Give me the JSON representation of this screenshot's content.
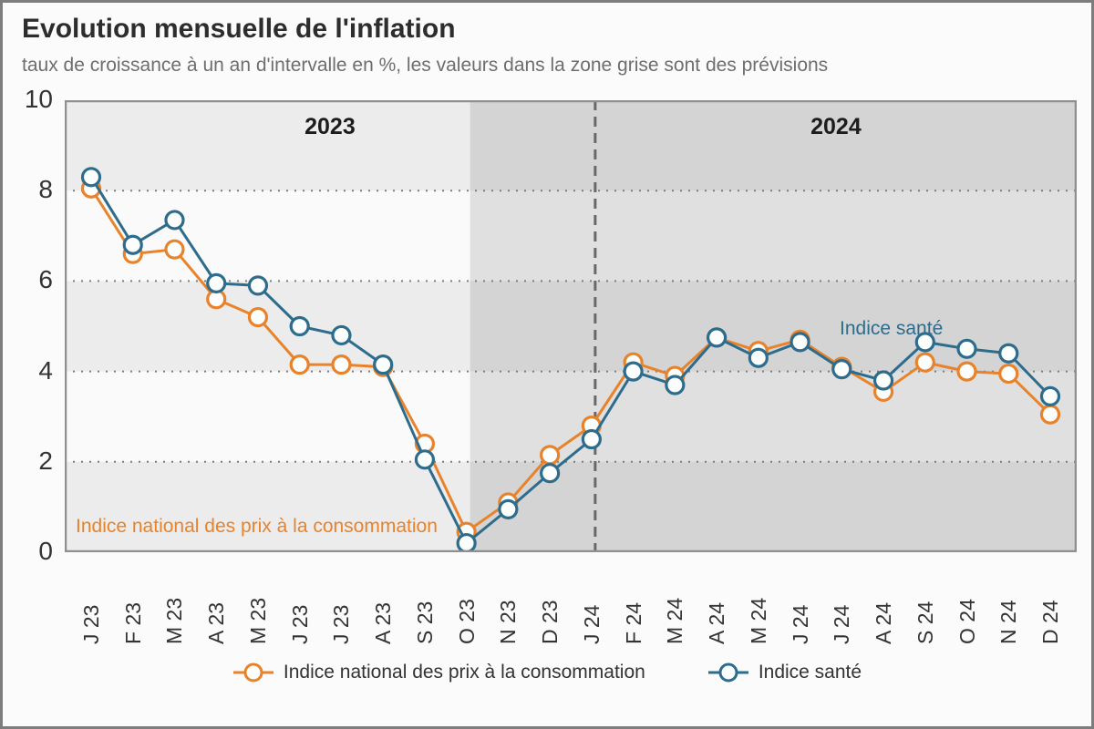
{
  "header": {
    "title": "Evolution mensuelle de l'inflation",
    "subtitle": "taux de croissance à un an d'intervalle en %, les valeurs dans la zone grise sont des prévisions"
  },
  "colors": {
    "cpi": "#e8832b",
    "health": "#2d6c8c",
    "band_dark": "#ececec",
    "band_light": "#fafafa",
    "forecast_overlay": "rgba(0,0,0,0.10)",
    "gridline": "#7d7d7d",
    "divider": "#686868",
    "plot_border": "#8f8f8f",
    "marker_fill": "#fcfefe"
  },
  "chart_data": {
    "type": "line",
    "x": [
      "J 23",
      "F 23",
      "M 23",
      "A 23",
      "M 23",
      "J 23",
      "J 23",
      "A 23",
      "S 23",
      "O 23",
      "N 23",
      "D 23",
      "J 24",
      "F 24",
      "M 24",
      "A 24",
      "M 24",
      "J 24",
      "J 24",
      "A 24",
      "S 24",
      "O 24",
      "N 24",
      "D 24"
    ],
    "series": [
      {
        "name": "Indice national des prix à la consommation",
        "color": "#e8832b",
        "values": [
          8.05,
          6.6,
          6.7,
          5.6,
          5.2,
          4.15,
          4.15,
          4.1,
          2.4,
          0.45,
          1.1,
          2.15,
          2.8,
          4.2,
          3.9,
          4.75,
          4.45,
          4.7,
          4.1,
          3.55,
          4.2,
          4.0,
          3.95,
          3.05
        ]
      },
      {
        "name": "Indice santé",
        "color": "#2d6c8c",
        "values": [
          8.3,
          6.8,
          7.35,
          5.95,
          5.9,
          5.0,
          4.8,
          4.15,
          2.05,
          0.2,
          0.95,
          1.75,
          2.5,
          4.0,
          3.7,
          4.75,
          4.3,
          4.65,
          4.05,
          3.8,
          4.65,
          4.5,
          4.4,
          3.45
        ]
      }
    ],
    "ylim": [
      0,
      10
    ],
    "yticks": [
      0,
      2,
      4,
      6,
      8,
      10
    ],
    "grid": "horizontal-dotted",
    "legend_position": "bottom",
    "forecast_start_index": 9,
    "year_divider_index": 12,
    "annotations": {
      "year_left": "2023",
      "year_right": "2024",
      "series_label_cpi": "Indice national des prix à la consommation",
      "series_label_health": "Indice santé"
    }
  }
}
